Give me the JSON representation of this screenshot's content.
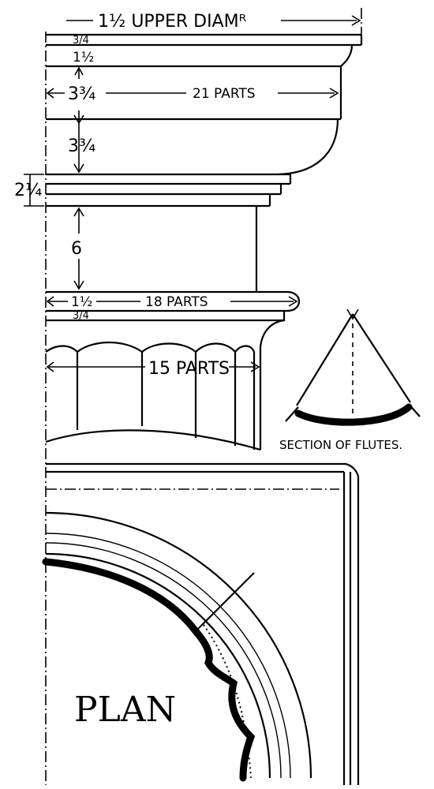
{
  "dimensions": {
    "upper_diameter": "1½ UPPER DIAMᴿ",
    "d_three_quarter_top": "3/4",
    "d_one_half_top": "1½",
    "d_three_three_quarter_a": "3¾",
    "d_twenty_one_parts": "21 PARTS",
    "d_three_three_quarter_b": "3¾",
    "d_two_quarter": "2¼",
    "d_six": "6",
    "d_one_half_mid": "1½",
    "d_eighteen_parts": "18 PARTS",
    "d_three_quarter_mid": "3/4",
    "d_fifteen_parts": "15 PARTS"
  },
  "labels": {
    "section_of_flutes": "SECTION OF FLUTES.",
    "plan": "PLAN"
  }
}
